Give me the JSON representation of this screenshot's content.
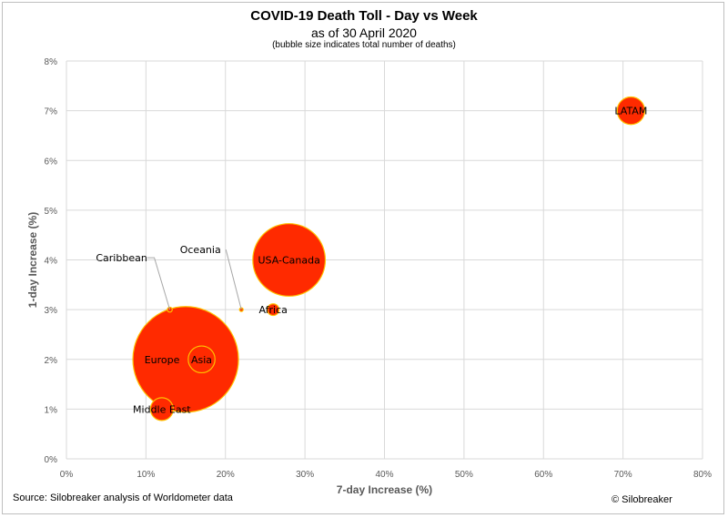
{
  "header": {
    "title": "COVID-19 Death Toll - Day vs Week",
    "subtitle": "as of 30 April 2020",
    "note": "(bubble size indicates total number of deaths)"
  },
  "footer": {
    "source": "Source: Silobreaker analysis of Worldometer data",
    "copyright": "© Silobreaker"
  },
  "chart_data": {
    "type": "scatter",
    "subtype": "bubble",
    "title": "COVID-19 Death Toll - Day vs Week",
    "subtitle": "as of 30 April 2020",
    "xlabel": "7-day Increase (%)",
    "ylabel": "1-day Increase (%)",
    "xlim": [
      0,
      80
    ],
    "ylim": [
      0,
      8
    ],
    "x_ticks": [
      0,
      10,
      20,
      30,
      40,
      50,
      60,
      70,
      80
    ],
    "y_ticks": [
      0,
      1,
      2,
      3,
      4,
      5,
      6,
      7,
      8
    ],
    "x_tick_labels": [
      "0%",
      "10%",
      "20%",
      "30%",
      "40%",
      "50%",
      "60%",
      "70%",
      "80%"
    ],
    "y_tick_labels": [
      "0%",
      "1%",
      "2%",
      "3%",
      "4%",
      "5%",
      "6%",
      "7%",
      "8%"
    ],
    "grid": true,
    "legend": "none",
    "colors": {
      "fill": "#ff2a00",
      "stroke": "#ffc000",
      "grid": "#d9d9d9",
      "leader": "#a6a6a6"
    },
    "points": [
      {
        "label": "Europe",
        "x": 15,
        "y": 2,
        "deaths": 140000
      },
      {
        "label": "USA-Canada",
        "x": 28,
        "y": 4,
        "deaths": 66000
      },
      {
        "label": "Asia",
        "x": 17,
        "y": 2,
        "deaths": 9000
      },
      {
        "label": "LATAM",
        "x": 71,
        "y": 7,
        "deaths": 9500
      },
      {
        "label": "Middle East",
        "x": 12,
        "y": 1,
        "deaths": 6500
      },
      {
        "label": "Africa",
        "x": 26,
        "y": 3,
        "deaths": 1700
      },
      {
        "label": "Caribbean",
        "x": 13,
        "y": 3,
        "deaths": 300
      },
      {
        "label": "Oceania",
        "x": 22,
        "y": 3,
        "deaths": 120
      }
    ]
  }
}
